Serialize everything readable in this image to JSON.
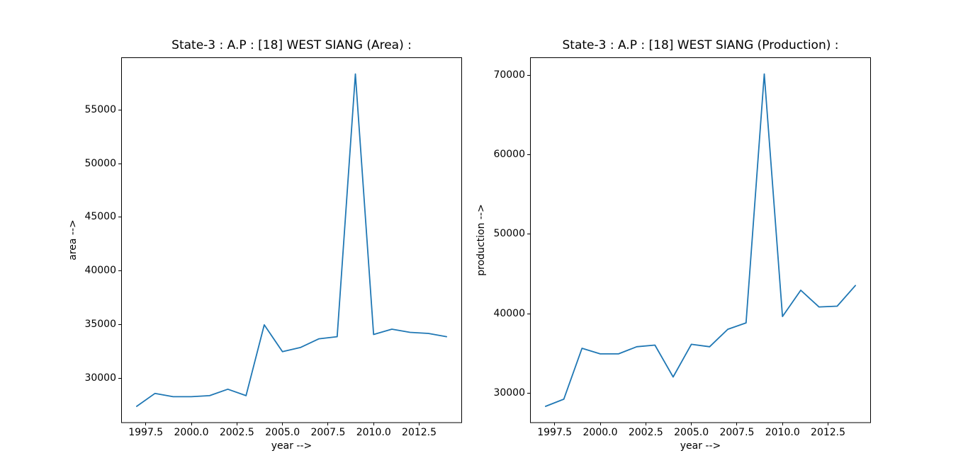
{
  "figure": {
    "background": "#ffffff",
    "axis_color": "#000000",
    "text_color": "#000000"
  },
  "chart_data": [
    {
      "type": "line",
      "title": "State-3 : A.P : [18] WEST SIANG (Area) :",
      "xlabel": "year -->",
      "ylabel": "area -->",
      "line_color": "#1f77b4",
      "grid": false,
      "legend": "none",
      "x": [
        1997,
        1998,
        1999,
        2000,
        2001,
        2002,
        2003,
        2004,
        2005,
        2006,
        2007,
        2008,
        2009,
        2010,
        2011,
        2012,
        2013,
        2014
      ],
      "values": [
        27400,
        28600,
        28300,
        28300,
        28400,
        29000,
        28400,
        35000,
        32500,
        32900,
        33700,
        33900,
        58400,
        34100,
        34600,
        34300,
        34200,
        33900
      ],
      "xlim": [
        1996.15,
        2014.85
      ],
      "ylim": [
        25850,
        59950
      ],
      "xticks": [
        1997.5,
        2000.0,
        2002.5,
        2005.0,
        2007.5,
        2010.0,
        2012.5
      ],
      "xtick_labels": [
        "1997.5",
        "2000.0",
        "2002.5",
        "2005.0",
        "2007.5",
        "2010.0",
        "2012.5"
      ],
      "yticks": [
        30000,
        35000,
        40000,
        45000,
        50000,
        55000
      ],
      "ytick_labels": [
        "30000",
        "35000",
        "40000",
        "45000",
        "50000",
        "55000"
      ]
    },
    {
      "type": "line",
      "title": "State-3 : A.P : [18] WEST SIANG (Production) :",
      "xlabel": "year -->",
      "ylabel": "production -->",
      "line_color": "#1f77b4",
      "grid": false,
      "legend": "none",
      "x": [
        1997,
        1998,
        1999,
        2000,
        2001,
        2002,
        2003,
        2004,
        2005,
        2006,
        2007,
        2008,
        2009,
        2010,
        2011,
        2012,
        2013,
        2014
      ],
      "values": [
        28400,
        29300,
        35700,
        35000,
        35000,
        35900,
        36100,
        32100,
        36200,
        35900,
        38100,
        38900,
        70200,
        39700,
        43000,
        40900,
        41000,
        43600
      ],
      "xlim": [
        1996.15,
        2014.85
      ],
      "ylim": [
        26310,
        72290
      ],
      "xticks": [
        1997.5,
        2000.0,
        2002.5,
        2005.0,
        2007.5,
        2010.0,
        2012.5
      ],
      "xtick_labels": [
        "1997.5",
        "2000.0",
        "2002.5",
        "2005.0",
        "2007.5",
        "2010.0",
        "2012.5"
      ],
      "yticks": [
        30000,
        40000,
        50000,
        60000,
        70000
      ],
      "ytick_labels": [
        "30000",
        "40000",
        "50000",
        "60000",
        "70000"
      ]
    }
  ]
}
